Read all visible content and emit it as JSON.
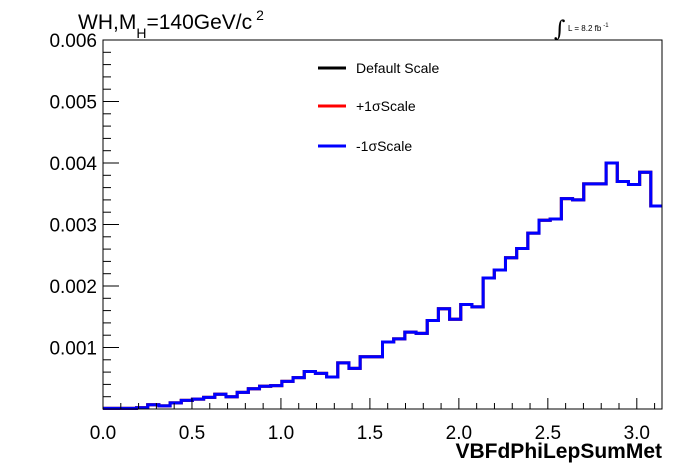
{
  "chart_data": {
    "type": "line",
    "style": "step-histogram",
    "title_parts": {
      "main": "WH,M",
      "sub": "H",
      "rest": "=140GeV/c",
      "sup": "2"
    },
    "lumi_parts": {
      "integral": "∫",
      "text": "L = 8.2 fb",
      "sup": "-1"
    },
    "xlabel": "VBFdPhiLepSumMet",
    "ylabel": "",
    "xlim": [
      0,
      3.1416
    ],
    "ylim": [
      0,
      0.006
    ],
    "x_ticks": [
      "0.0",
      "0.5",
      "1.0",
      "1.5",
      "2.0",
      "2.5",
      "3.0"
    ],
    "x_tick_values": [
      0,
      0.5,
      1.0,
      1.5,
      2.0,
      2.5,
      3.0
    ],
    "y_ticks": [
      "0.001",
      "0.002",
      "0.003",
      "0.004",
      "0.005",
      "0.006"
    ],
    "y_tick_values": [
      0.001,
      0.002,
      0.003,
      0.004,
      0.005,
      0.006
    ],
    "bins": 50,
    "grid": false,
    "legend_position": "top-center",
    "series": [
      {
        "name": "Default Scale",
        "color": "#000000",
        "values": [
          1e-05,
          1e-05,
          1e-05,
          2e-05,
          7e-05,
          5e-05,
          0.0001,
          0.00014,
          0.00016,
          0.00019,
          0.00024,
          0.0002,
          0.00027,
          0.00033,
          0.00037,
          0.00038,
          0.00045,
          0.00051,
          0.00061,
          0.00058,
          0.00052,
          0.00075,
          0.00066,
          0.00085,
          0.00085,
          0.00109,
          0.00114,
          0.00125,
          0.00123,
          0.00144,
          0.00163,
          0.00146,
          0.0017,
          0.00166,
          0.00213,
          0.00226,
          0.00246,
          0.00261,
          0.00286,
          0.00307,
          0.00309,
          0.00342,
          0.0034,
          0.00366,
          0.00366,
          0.004,
          0.0037,
          0.00365,
          0.00385,
          0.0033
        ]
      },
      {
        "name": "+1σScale",
        "color": "#ff0000",
        "values": [
          1e-05,
          1e-05,
          1e-05,
          2e-05,
          7e-05,
          5e-05,
          0.0001,
          0.00014,
          0.00016,
          0.00019,
          0.00024,
          0.0002,
          0.00027,
          0.00033,
          0.00037,
          0.00038,
          0.00045,
          0.00051,
          0.00061,
          0.00058,
          0.00052,
          0.00075,
          0.00066,
          0.00085,
          0.00085,
          0.00109,
          0.00114,
          0.00125,
          0.00123,
          0.00144,
          0.00163,
          0.00146,
          0.0017,
          0.00166,
          0.00213,
          0.00226,
          0.00246,
          0.00261,
          0.00286,
          0.00307,
          0.00309,
          0.00342,
          0.0034,
          0.00366,
          0.00366,
          0.004,
          0.0037,
          0.00365,
          0.00385,
          0.0033
        ]
      },
      {
        "name": "-1σScale",
        "color": "#0000ff",
        "values": [
          1e-05,
          1e-05,
          1e-05,
          2e-05,
          7e-05,
          5e-05,
          0.0001,
          0.00014,
          0.00016,
          0.00019,
          0.00024,
          0.0002,
          0.00027,
          0.00033,
          0.00037,
          0.00038,
          0.00045,
          0.00051,
          0.00061,
          0.00058,
          0.00052,
          0.00075,
          0.00066,
          0.00085,
          0.00085,
          0.00109,
          0.00114,
          0.00125,
          0.00123,
          0.00144,
          0.00163,
          0.00146,
          0.0017,
          0.00166,
          0.00213,
          0.00226,
          0.00246,
          0.00261,
          0.00286,
          0.00307,
          0.00309,
          0.00342,
          0.0034,
          0.00366,
          0.00366,
          0.004,
          0.0037,
          0.00365,
          0.00385,
          0.0033
        ]
      }
    ]
  }
}
